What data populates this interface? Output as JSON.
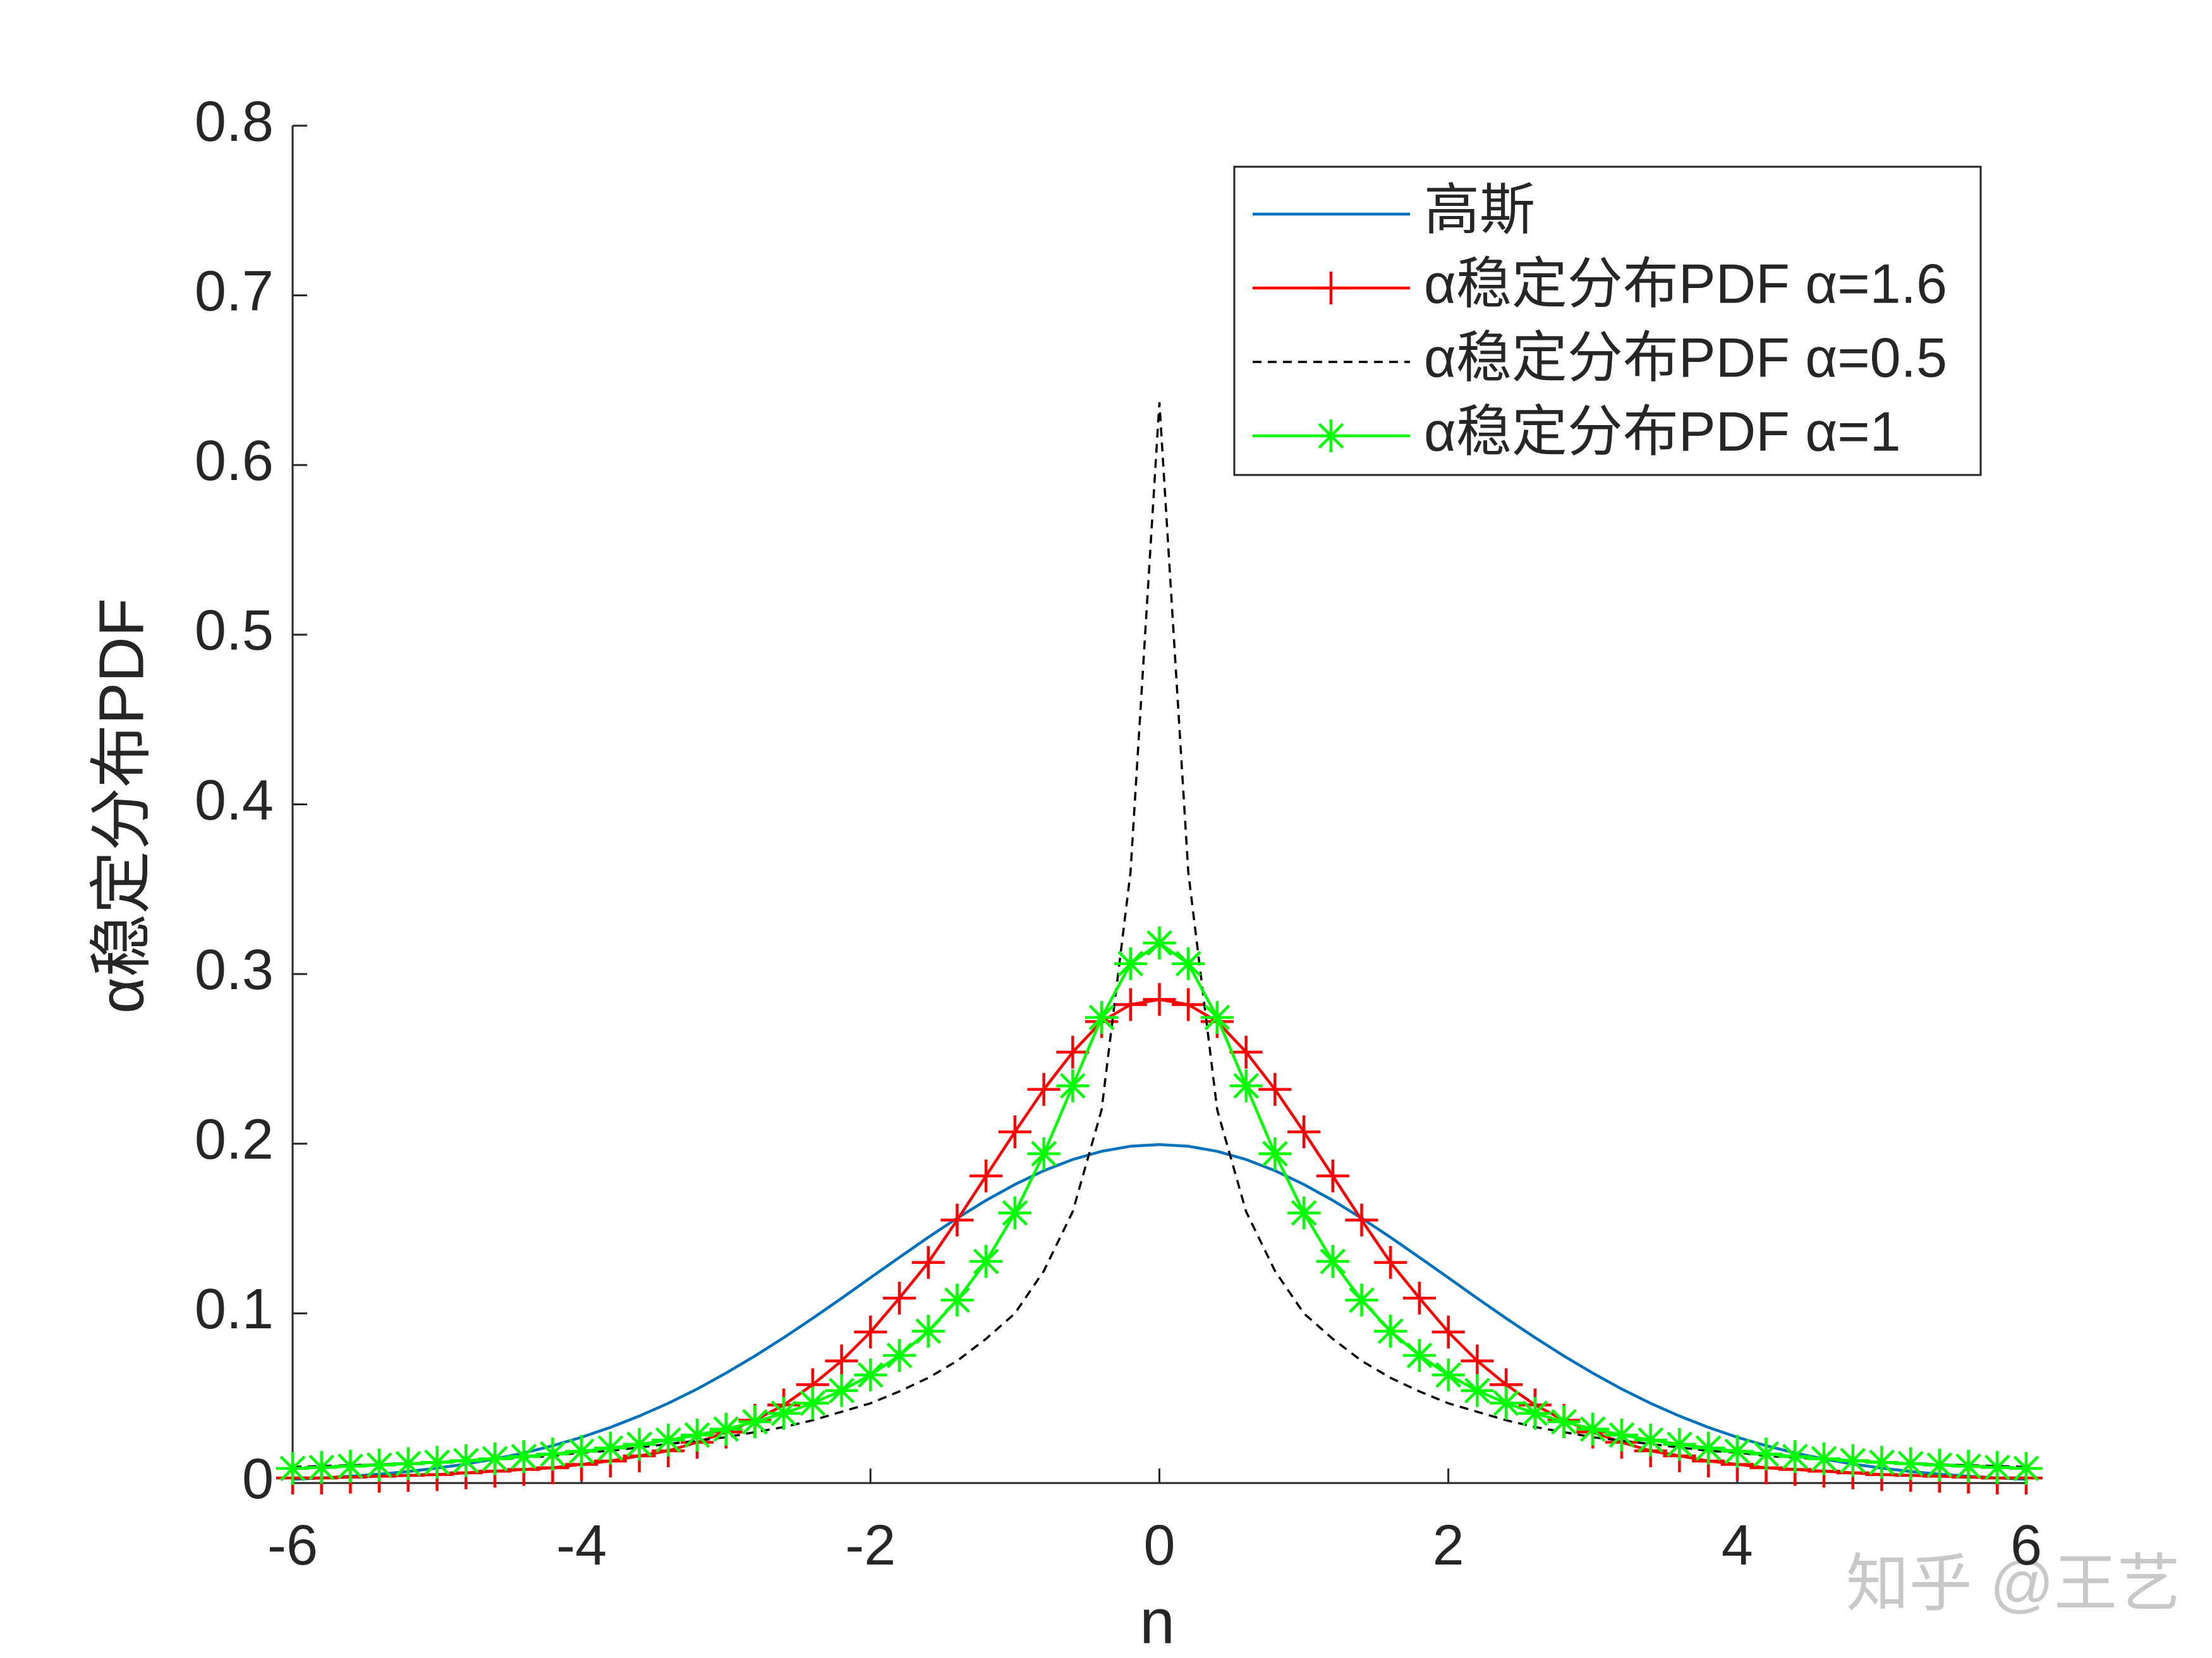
{
  "chart_data": {
    "type": "line",
    "x_label": "n",
    "y_label": "α稳定分布PDF",
    "annotation": "知乎 @王艺",
    "x": [
      -6,
      -5.8,
      -5.6,
      -5.4,
      -5.2,
      -5,
      -4.8,
      -4.6,
      -4.4,
      -4.2,
      -4,
      -3.8,
      -3.6,
      -3.4,
      -3.2,
      -3,
      -2.8,
      -2.6,
      -2.4,
      -2.2,
      -2,
      -1.8,
      -1.6,
      -1.4,
      -1.2,
      -1,
      -0.8,
      -0.6,
      -0.4,
      -0.2,
      0,
      0.2,
      0.4,
      0.6,
      0.8,
      1,
      1.2,
      1.4,
      1.6,
      1.8,
      2,
      2.2,
      2.4,
      2.6,
      2.8,
      3,
      3.2,
      3.4,
      3.6,
      3.8,
      4,
      4.2,
      4.4,
      4.6,
      4.8,
      5,
      5.2,
      5.4,
      5.6,
      5.8,
      6
    ],
    "series": [
      {
        "name": "高斯",
        "color": "#0072bd",
        "linestyle": "-",
        "marker": "none",
        "values": [
          0.0022,
          0.003,
          0.004,
          0.0052,
          0.0068,
          0.0088,
          0.0112,
          0.0142,
          0.0177,
          0.022,
          0.027,
          0.0328,
          0.0395,
          0.047,
          0.0554,
          0.0648,
          0.0749,
          0.0857,
          0.0971,
          0.1089,
          0.121,
          0.133,
          0.1448,
          0.1561,
          0.1666,
          0.176,
          0.1841,
          0.1907,
          0.1955,
          0.1985,
          0.1995,
          0.1985,
          0.1955,
          0.1907,
          0.1841,
          0.176,
          0.1666,
          0.1561,
          0.1448,
          0.133,
          0.121,
          0.1089,
          0.0971,
          0.0857,
          0.0749,
          0.0648,
          0.0554,
          0.047,
          0.0395,
          0.0328,
          0.027,
          0.022,
          0.0177,
          0.0142,
          0.0112,
          0.0088,
          0.0068,
          0.0052,
          0.004,
          0.003,
          0.0022
        ]
      },
      {
        "name": "α稳定分布PDF α=1.6",
        "color": "#ff0000",
        "linestyle": "-",
        "marker": "+",
        "values": [
          0.003,
          0.003,
          0.0035,
          0.004,
          0.0045,
          0.005,
          0.006,
          0.007,
          0.008,
          0.009,
          0.011,
          0.013,
          0.016,
          0.019,
          0.024,
          0.03,
          0.037,
          0.046,
          0.058,
          0.072,
          0.089,
          0.109,
          0.13,
          0.155,
          0.181,
          0.207,
          0.232,
          0.254,
          0.272,
          0.282,
          0.285,
          0.282,
          0.272,
          0.254,
          0.232,
          0.207,
          0.181,
          0.155,
          0.13,
          0.109,
          0.089,
          0.072,
          0.058,
          0.046,
          0.037,
          0.03,
          0.024,
          0.019,
          0.016,
          0.013,
          0.011,
          0.009,
          0.008,
          0.007,
          0.006,
          0.005,
          0.0045,
          0.004,
          0.0035,
          0.003,
          0.003
        ]
      },
      {
        "name": "α稳定分布PDF α=0.5",
        "color": "#000000",
        "linestyle": "--",
        "marker": "none",
        "values": [
          0.0095,
          0.01,
          0.0105,
          0.011,
          0.0115,
          0.012,
          0.013,
          0.014,
          0.015,
          0.016,
          0.018,
          0.019,
          0.021,
          0.023,
          0.025,
          0.027,
          0.03,
          0.033,
          0.037,
          0.042,
          0.047,
          0.054,
          0.062,
          0.072,
          0.085,
          0.1,
          0.125,
          0.16,
          0.22,
          0.36,
          0.637,
          0.36,
          0.22,
          0.16,
          0.125,
          0.1,
          0.085,
          0.072,
          0.062,
          0.054,
          0.047,
          0.042,
          0.037,
          0.033,
          0.03,
          0.027,
          0.025,
          0.023,
          0.021,
          0.019,
          0.018,
          0.016,
          0.015,
          0.014,
          0.013,
          0.012,
          0.0115,
          0.011,
          0.0105,
          0.01,
          0.0095
        ]
      },
      {
        "name": "α稳定分布PDF α=1",
        "color": "#00ff00",
        "linestyle": "-",
        "marker": "*",
        "values": [
          0.0086,
          0.0092,
          0.0099,
          0.0106,
          0.0114,
          0.0122,
          0.0132,
          0.0143,
          0.0156,
          0.0171,
          0.0187,
          0.0206,
          0.0228,
          0.0253,
          0.0283,
          0.0318,
          0.0361,
          0.0411,
          0.0471,
          0.0545,
          0.0637,
          0.0752,
          0.0895,
          0.1078,
          0.1306,
          0.1592,
          0.1941,
          0.2341,
          0.2744,
          0.3061,
          0.3183,
          0.3061,
          0.2744,
          0.2341,
          0.1941,
          0.1592,
          0.1306,
          0.1078,
          0.0895,
          0.0752,
          0.0637,
          0.0545,
          0.0471,
          0.0411,
          0.0361,
          0.0318,
          0.0283,
          0.0253,
          0.0228,
          0.0206,
          0.0187,
          0.0171,
          0.0156,
          0.0143,
          0.0132,
          0.0122,
          0.0114,
          0.0106,
          0.0099,
          0.0092,
          0.0086
        ]
      }
    ],
    "xlim": [
      -6,
      6
    ],
    "xticks": [
      -6,
      -4,
      -2,
      0,
      2,
      4,
      6
    ],
    "ylim": [
      0,
      0.8
    ],
    "yticks": [
      0,
      0.1,
      0.2,
      0.3,
      0.4,
      0.5,
      0.6,
      0.7,
      0.8
    ],
    "grid": false,
    "legend": "upper right"
  }
}
